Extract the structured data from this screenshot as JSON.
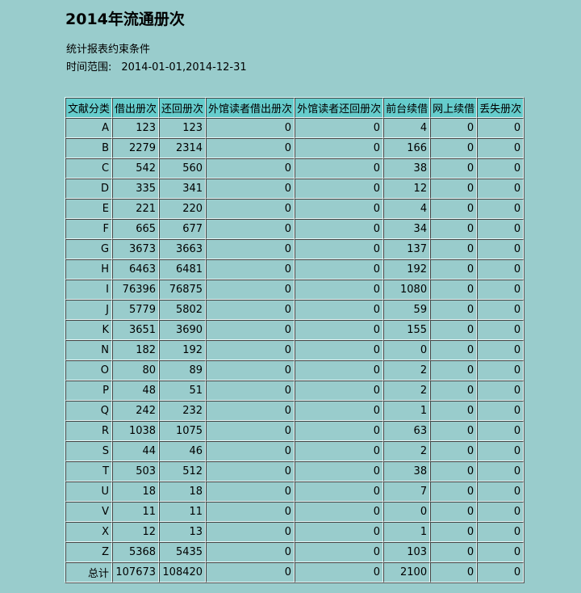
{
  "header": {
    "title": "2014年流通册次",
    "conditions": "统计报表约束条件",
    "range_label": "时间范围:",
    "range_value": "2014-01-01,2014-12-31"
  },
  "table": {
    "columns": [
      "文献分类",
      "借出册次",
      "还回册次",
      "外馆读者借出册次",
      "外馆读者还回册次",
      "前台续借",
      "网上续借",
      "丢失册次"
    ],
    "rows": [
      [
        "A",
        123,
        123,
        0,
        0,
        4,
        0,
        0
      ],
      [
        "B",
        2279,
        2314,
        0,
        0,
        166,
        0,
        0
      ],
      [
        "C",
        542,
        560,
        0,
        0,
        38,
        0,
        0
      ],
      [
        "D",
        335,
        341,
        0,
        0,
        12,
        0,
        0
      ],
      [
        "E",
        221,
        220,
        0,
        0,
        4,
        0,
        0
      ],
      [
        "F",
        665,
        677,
        0,
        0,
        34,
        0,
        0
      ],
      [
        "G",
        3673,
        3663,
        0,
        0,
        137,
        0,
        0
      ],
      [
        "H",
        6463,
        6481,
        0,
        0,
        192,
        0,
        0
      ],
      [
        "I",
        76396,
        76875,
        0,
        0,
        1080,
        0,
        0
      ],
      [
        "J",
        5779,
        5802,
        0,
        0,
        59,
        0,
        0
      ],
      [
        "K",
        3651,
        3690,
        0,
        0,
        155,
        0,
        0
      ],
      [
        "N",
        182,
        192,
        0,
        0,
        0,
        0,
        0
      ],
      [
        "O",
        80,
        89,
        0,
        0,
        2,
        0,
        0
      ],
      [
        "P",
        48,
        51,
        0,
        0,
        2,
        0,
        0
      ],
      [
        "Q",
        242,
        232,
        0,
        0,
        1,
        0,
        0
      ],
      [
        "R",
        1038,
        1075,
        0,
        0,
        63,
        0,
        0
      ],
      [
        "S",
        44,
        46,
        0,
        0,
        2,
        0,
        0
      ],
      [
        "T",
        503,
        512,
        0,
        0,
        38,
        0,
        0
      ],
      [
        "U",
        18,
        18,
        0,
        0,
        7,
        0,
        0
      ],
      [
        "V",
        11,
        11,
        0,
        0,
        0,
        0,
        0
      ],
      [
        "X",
        12,
        13,
        0,
        0,
        1,
        0,
        0
      ],
      [
        "Z",
        5368,
        5435,
        0,
        0,
        103,
        0,
        0
      ],
      [
        "总计",
        107673,
        108420,
        0,
        0,
        2100,
        0,
        0
      ]
    ]
  }
}
